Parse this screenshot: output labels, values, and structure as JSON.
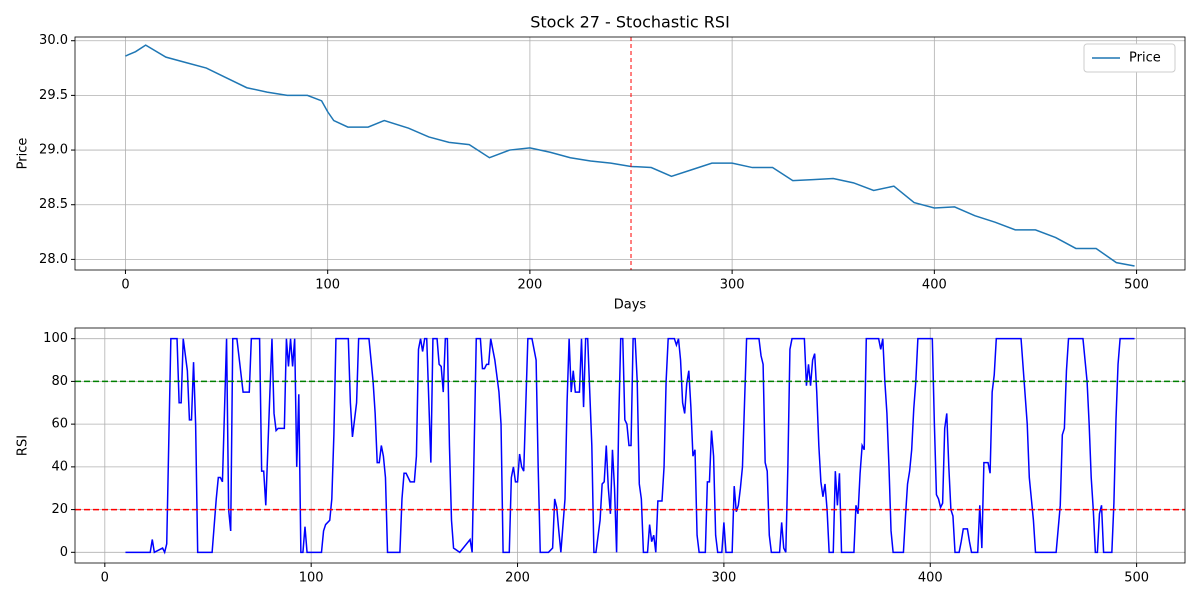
{
  "chart_data": [
    {
      "type": "line",
      "title": "Stock 27 - Stochastic RSI",
      "xlabel": "Days",
      "ylabel": "Price",
      "x": [
        0,
        5,
        10,
        20,
        30,
        40,
        50,
        60,
        70,
        80,
        90,
        97,
        100,
        103,
        110,
        120,
        128,
        140,
        150,
        160,
        170,
        180,
        190,
        200,
        210,
        220,
        230,
        240,
        250,
        260,
        270,
        280,
        290,
        300,
        310,
        320,
        330,
        340,
        350,
        360,
        370,
        380,
        390,
        400,
        410,
        420,
        430,
        440,
        450,
        460,
        470,
        480,
        490,
        499
      ],
      "series": [
        {
          "name": "Price",
          "color": "#1f77b4",
          "values": [
            29.86,
            29.9,
            29.96,
            29.85,
            29.8,
            29.75,
            29.66,
            29.57,
            29.53,
            29.5,
            29.5,
            29.45,
            29.35,
            29.27,
            29.21,
            29.21,
            29.27,
            29.2,
            29.12,
            29.07,
            29.05,
            28.93,
            29.0,
            29.02,
            28.98,
            28.93,
            28.9,
            28.88,
            28.85,
            28.84,
            28.76,
            28.82,
            28.88,
            28.88,
            28.84,
            28.84,
            28.72,
            28.73,
            28.74,
            28.7,
            28.63,
            28.67,
            28.52,
            28.47,
            28.48,
            28.4,
            28.34,
            28.27,
            28.27,
            28.2,
            28.1,
            28.1,
            27.97,
            27.94
          ]
        }
      ],
      "xlim": [
        -24.95,
        523.95
      ],
      "ylim": [
        27.903,
        30.034
      ],
      "xticks": [
        0,
        100,
        200,
        300,
        400,
        500
      ],
      "yticks": [
        {
          "value": 28,
          "label": "28.0"
        },
        {
          "value": 28.5,
          "label": "28.5"
        },
        {
          "value": 29,
          "label": "29.0"
        },
        {
          "value": 29.5,
          "label": "29.5"
        },
        {
          "value": 30,
          "label": "30.0"
        }
      ],
      "vlines": [
        {
          "x": 250,
          "color": "red"
        }
      ],
      "grid": true,
      "legend": "upper right"
    },
    {
      "type": "line",
      "ylabel": "RSI",
      "color": "#0000ff",
      "x": [
        10,
        22,
        23,
        24,
        28,
        29,
        30,
        32,
        35,
        36,
        37,
        38,
        40,
        41,
        42,
        43,
        44,
        45,
        52,
        54,
        55,
        56,
        57,
        59,
        60,
        61,
        62,
        64,
        67,
        70,
        71,
        75,
        76,
        77,
        78,
        80,
        81,
        82,
        83,
        84,
        87,
        88,
        89,
        90,
        91,
        92,
        93,
        94,
        95,
        96,
        97,
        98,
        105,
        106,
        107,
        109,
        110,
        111,
        112,
        118,
        119,
        120,
        122,
        123,
        128,
        130,
        131,
        132,
        133,
        134,
        135,
        136,
        137,
        143,
        144,
        145,
        146,
        148,
        150,
        151,
        152,
        153,
        154,
        155,
        156,
        158,
        159,
        161,
        162,
        163,
        164,
        165,
        166,
        167,
        168,
        169,
        172,
        177,
        178,
        179,
        180,
        182,
        183,
        184,
        185,
        186,
        187,
        189,
        191,
        192,
        193,
        196,
        197,
        198,
        199,
        200,
        201,
        202,
        203,
        205,
        207,
        209,
        210,
        211,
        215,
        217,
        218,
        219,
        220,
        221,
        223,
        224,
        225,
        226,
        227,
        228,
        230,
        231,
        232,
        233,
        234,
        235,
        236,
        237,
        238,
        240,
        241,
        242,
        243,
        244,
        245,
        246,
        247,
        248,
        249,
        250,
        251,
        252,
        253,
        254,
        255,
        256,
        257,
        258,
        259,
        260,
        261,
        263,
        264,
        265,
        266,
        267,
        268,
        270,
        271,
        272,
        273,
        276,
        277,
        278,
        279,
        280,
        281,
        282,
        283,
        284,
        285,
        286,
        287,
        288,
        291,
        292,
        293,
        294,
        295,
        296,
        297,
        299,
        300,
        301,
        304,
        305,
        306,
        307,
        308,
        309,
        310,
        311,
        317,
        318,
        319,
        320,
        321,
        322,
        323,
        327,
        328,
        329,
        330,
        331,
        332,
        333,
        339,
        340,
        341,
        342,
        343,
        344,
        345,
        346,
        347,
        348,
        349,
        350,
        351,
        353,
        354,
        355,
        356,
        357,
        363,
        364,
        365,
        366,
        367,
        368,
        369,
        375,
        376,
        377,
        378,
        379,
        380,
        381,
        382,
        387,
        388,
        389,
        390,
        391,
        392,
        393,
        394,
        401,
        402,
        403,
        404,
        405,
        406,
        407,
        408,
        409,
        410,
        411,
        412,
        414,
        415,
        416,
        418,
        419,
        420,
        423,
        424,
        425,
        426,
        428,
        429,
        430,
        431,
        432,
        444,
        447,
        448,
        450,
        451,
        461,
        463,
        464,
        465,
        466,
        467,
        474,
        476,
        477,
        478,
        479,
        480,
        481,
        482,
        483,
        484,
        488,
        489,
        490,
        491,
        492,
        499
      ],
      "values": [
        0,
        0,
        6,
        0,
        2,
        0,
        4,
        100,
        100,
        70,
        70,
        100,
        85,
        62,
        62,
        89,
        60,
        0,
        0,
        25,
        35,
        35,
        33,
        100,
        20,
        10,
        100,
        100,
        75,
        75,
        100,
        100,
        38,
        38,
        22,
        75,
        100,
        65,
        57,
        58,
        58,
        100,
        87,
        100,
        87,
        100,
        40,
        74,
        0,
        0,
        12,
        0,
        0,
        10,
        13,
        15,
        25,
        55,
        100,
        100,
        70,
        54,
        70,
        100,
        100,
        80,
        65,
        42,
        42,
        50,
        45,
        35,
        0,
        0,
        25,
        37,
        37,
        33,
        33,
        45,
        95,
        100,
        94,
        100,
        100,
        42,
        100,
        100,
        88,
        87,
        75,
        100,
        100,
        50,
        15,
        2,
        0,
        6,
        0,
        50,
        100,
        100,
        86,
        86,
        88,
        88,
        100,
        90,
        75,
        60,
        0,
        0,
        35,
        40,
        33,
        33,
        46,
        40,
        38,
        100,
        100,
        90,
        40,
        0,
        0,
        2,
        25,
        21,
        10,
        0,
        25,
        70,
        100,
        75,
        85,
        75,
        75,
        100,
        68,
        100,
        100,
        75,
        50,
        0,
        0,
        15,
        32,
        33,
        50,
        30,
        18,
        48,
        30,
        0,
        60,
        100,
        100,
        62,
        60,
        50,
        50,
        100,
        100,
        80,
        32,
        25,
        0,
        0,
        13,
        5,
        8,
        0,
        24,
        24,
        40,
        80,
        100,
        100,
        97,
        100,
        90,
        70,
        65,
        79,
        85,
        68,
        45,
        48,
        8,
        0,
        0,
        33,
        33,
        57,
        45,
        8,
        0,
        0,
        14,
        0,
        0,
        31,
        19,
        22,
        30,
        40,
        70,
        100,
        100,
        92,
        88,
        42,
        38,
        8,
        0,
        0,
        14,
        2,
        0,
        40,
        95,
        100,
        100,
        78,
        88,
        78,
        90,
        93,
        75,
        50,
        33,
        26,
        32,
        20,
        0,
        0,
        38,
        22,
        37,
        0,
        0,
        22,
        18,
        37,
        50,
        48,
        100,
        100,
        95,
        100,
        80,
        65,
        40,
        10,
        0,
        0,
        17,
        32,
        38,
        48,
        67,
        80,
        100,
        100,
        60,
        27,
        25,
        21,
        23,
        58,
        65,
        40,
        20,
        17,
        0,
        0,
        5,
        11,
        11,
        5,
        0,
        0,
        22,
        2,
        42,
        42,
        37,
        75,
        83,
        100,
        100,
        60,
        35,
        15,
        0,
        0,
        22,
        55,
        58,
        85,
        100,
        100,
        80,
        60,
        35,
        20,
        0,
        0,
        18,
        22,
        0,
        0,
        23,
        62,
        88,
        100,
        100
      ],
      "xlim": [
        -14.45,
        523.45
      ],
      "ylim": [
        -5,
        105
      ],
      "xticks": [
        0,
        100,
        200,
        300,
        400,
        500
      ],
      "yticks": [
        0,
        20,
        40,
        60,
        80,
        100
      ],
      "hlines": [
        {
          "y": 80,
          "color": "green"
        },
        {
          "y": 20,
          "color": "red"
        }
      ],
      "grid": true
    }
  ]
}
